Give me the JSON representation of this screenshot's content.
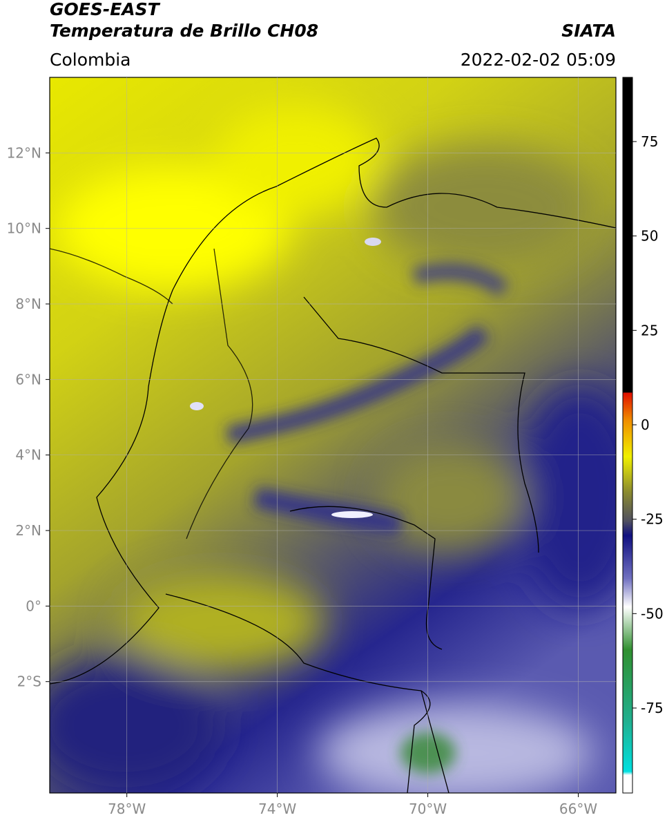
{
  "header": {
    "title": "GOES-EAST",
    "subtitle": "Temperatura de Brillo CH08",
    "source": "SIATA",
    "region": "Colombia",
    "timestamp": "2022-02-02 05:09"
  },
  "map": {
    "xlim": [
      -80.05,
      -65.0
    ],
    "ylim": [
      -4.95,
      14.0
    ],
    "xticks": [
      {
        "value": -78,
        "label": "78°W"
      },
      {
        "value": -74,
        "label": "74°W"
      },
      {
        "value": -70,
        "label": "70°W"
      },
      {
        "value": -66,
        "label": "66°W"
      }
    ],
    "yticks": [
      {
        "value": 12,
        "label": "12°N"
      },
      {
        "value": 10,
        "label": "10°N"
      },
      {
        "value": 8,
        "label": "8°N"
      },
      {
        "value": 6,
        "label": "6°N"
      },
      {
        "value": 4,
        "label": "4°N"
      },
      {
        "value": 2,
        "label": "2°N"
      },
      {
        "value": 0,
        "label": "0°"
      },
      {
        "value": -2,
        "label": "2°S"
      }
    ],
    "grid": true
  },
  "colorbar": {
    "lim": [
      -97.5,
      92
    ],
    "ticks": [
      75,
      50,
      25,
      0,
      -25,
      -50,
      -75
    ]
  }
}
